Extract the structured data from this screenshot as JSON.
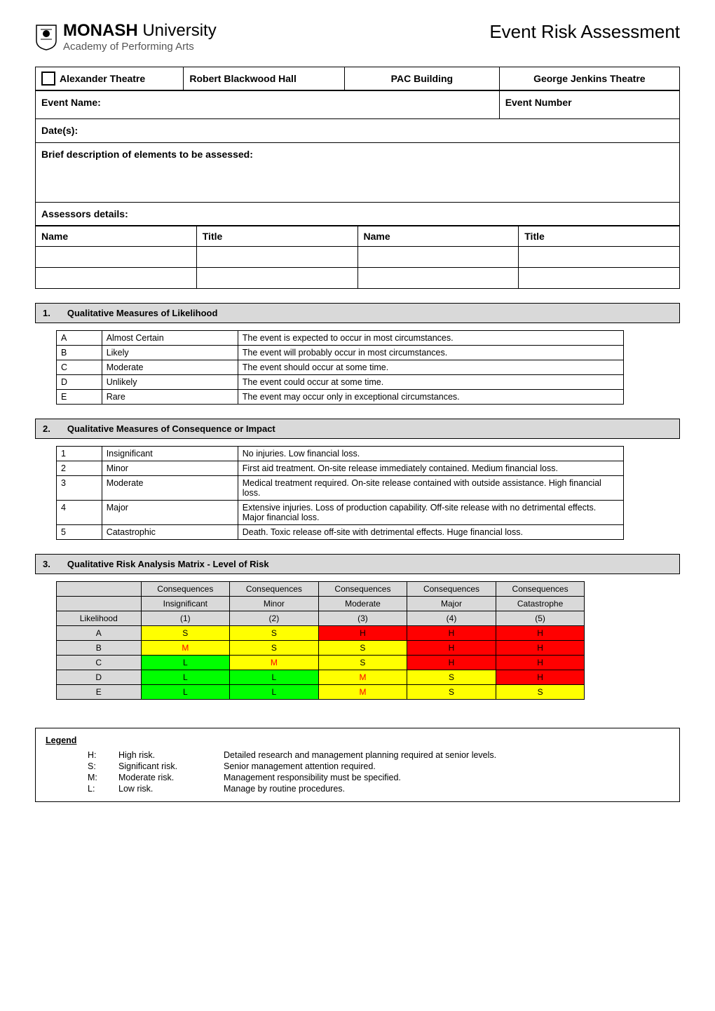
{
  "page_title": "Event Risk Assessment",
  "logo": {
    "line1a": "MONASH",
    "line1b": " University",
    "line2": "Academy of Performing Arts"
  },
  "venues": [
    "Alexander Theatre",
    "Robert Blackwood Hall",
    "PAC Building",
    "George Jenkins Theatre"
  ],
  "form": {
    "event_name_label": "Event Name:",
    "event_number_label": "Event Number",
    "dates_label": "Date(s):",
    "description_label": "Brief description of elements to be assessed:",
    "assessors_label": "Assessors details:",
    "name_label": "Name",
    "title_label": "Title"
  },
  "section1": {
    "num": "1.",
    "title": "Qualitative Measures of Likelihood",
    "rows": [
      {
        "code": "A",
        "label": "Almost Certain",
        "desc": "The event is expected to occur in most circumstances."
      },
      {
        "code": "B",
        "label": "Likely",
        "desc": "The event will probably occur in most circumstances."
      },
      {
        "code": "C",
        "label": "Moderate",
        "desc": "The event should occur at some time."
      },
      {
        "code": "D",
        "label": "Unlikely",
        "desc": "The event could occur at some time."
      },
      {
        "code": "E",
        "label": "Rare",
        "desc": "The event may occur only in exceptional circumstances."
      }
    ]
  },
  "section2": {
    "num": "2.",
    "title": "Qualitative Measures of Consequence or Impact",
    "rows": [
      {
        "code": "1",
        "label": "Insignificant",
        "desc": "No injuries.  Low financial loss."
      },
      {
        "code": "2",
        "label": "Minor",
        "desc": "First aid treatment.  On-site release immediately contained.  Medium financial loss."
      },
      {
        "code": "3",
        "label": "Moderate",
        "desc": "Medical treatment required.  On-site release contained with outside assistance.  High financial loss."
      },
      {
        "code": "4",
        "label": "Major",
        "desc": "Extensive injuries.  Loss of production capability.  Off-site release with no detrimental effects.  Major financial loss."
      },
      {
        "code": "5",
        "label": "Catastrophic",
        "desc": "Death.  Toxic release off-site with detrimental effects.  Huge financial loss."
      }
    ]
  },
  "section3": {
    "num": "3.",
    "title": "Qualitative Risk Analysis Matrix - Level of Risk",
    "col_header_top": "Consequences",
    "col_headers": [
      "Insignificant",
      "Minor",
      "Moderate",
      "Major",
      "Catastrophe"
    ],
    "col_nums": [
      "(1)",
      "(2)",
      "(3)",
      "(4)",
      "(5)"
    ],
    "row_header": "Likelihood",
    "rows": [
      {
        "code": "A",
        "cells": [
          "S",
          "S",
          "H",
          "H",
          "H"
        ]
      },
      {
        "code": "B",
        "cells": [
          "M",
          "S",
          "S",
          "H",
          "H"
        ]
      },
      {
        "code": "C",
        "cells": [
          "L",
          "M",
          "S",
          "H",
          "H"
        ]
      },
      {
        "code": "D",
        "cells": [
          "L",
          "L",
          "M",
          "S",
          "H"
        ]
      },
      {
        "code": "E",
        "cells": [
          "L",
          "L",
          "M",
          "S",
          "S"
        ]
      }
    ]
  },
  "legend": {
    "title": "Legend",
    "items": [
      {
        "code": "H:",
        "label": "High risk.",
        "desc": "Detailed research and management planning required at senior levels."
      },
      {
        "code": "S:",
        "label": "Significant risk.",
        "desc": "Senior management attention required."
      },
      {
        "code": "M:",
        "label": "Moderate risk.",
        "desc": "Management responsibility must be specified."
      },
      {
        "code": "L:",
        "label": "Low risk.",
        "desc": "Manage by routine procedures."
      }
    ]
  }
}
